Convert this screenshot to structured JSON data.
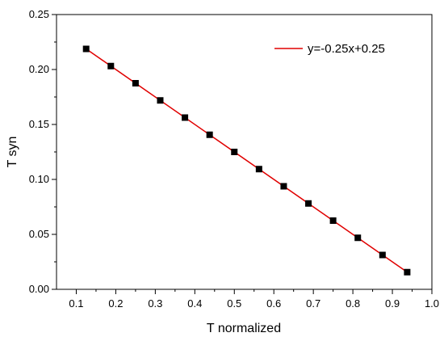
{
  "chart_data": {
    "type": "scatter",
    "xlabel": "T normalized",
    "ylabel": "T syn",
    "xlim": [
      0.05,
      1.0
    ],
    "ylim": [
      0.0,
      0.25
    ],
    "xticks": [
      "0.1",
      "0.2",
      "0.3",
      "0.4",
      "0.5",
      "0.6",
      "0.7",
      "0.8",
      "0.9",
      "1.0"
    ],
    "yticks": [
      "0.00",
      "0.05",
      "0.10",
      "0.15",
      "0.20",
      "0.25"
    ],
    "series": [
      {
        "values": [
          {
            "x": 0.125,
            "y": 0.21875
          },
          {
            "x": 0.1875,
            "y": 0.203125
          },
          {
            "x": 0.25,
            "y": 0.1875
          },
          {
            "x": 0.3125,
            "y": 0.171875
          },
          {
            "x": 0.375,
            "y": 0.15625
          },
          {
            "x": 0.4375,
            "y": 0.140625
          },
          {
            "x": 0.5,
            "y": 0.125
          },
          {
            "x": 0.5625,
            "y": 0.109375
          },
          {
            "x": 0.625,
            "y": 0.09375
          },
          {
            "x": 0.6875,
            "y": 0.078125
          },
          {
            "x": 0.75,
            "y": 0.0625
          },
          {
            "x": 0.8125,
            "y": 0.046875
          },
          {
            "x": 0.875,
            "y": 0.03125
          },
          {
            "x": 0.9375,
            "y": 0.015625
          }
        ],
        "marker": "square",
        "color": "#000000"
      },
      {
        "name": "y=-0.25x+0.25",
        "type": "line",
        "slope": -0.25,
        "intercept": 0.25,
        "x_range": [
          0.125,
          0.9375
        ],
        "color": "#e00000"
      }
    ],
    "legend": {
      "position": "top-right"
    },
    "grid": false
  }
}
